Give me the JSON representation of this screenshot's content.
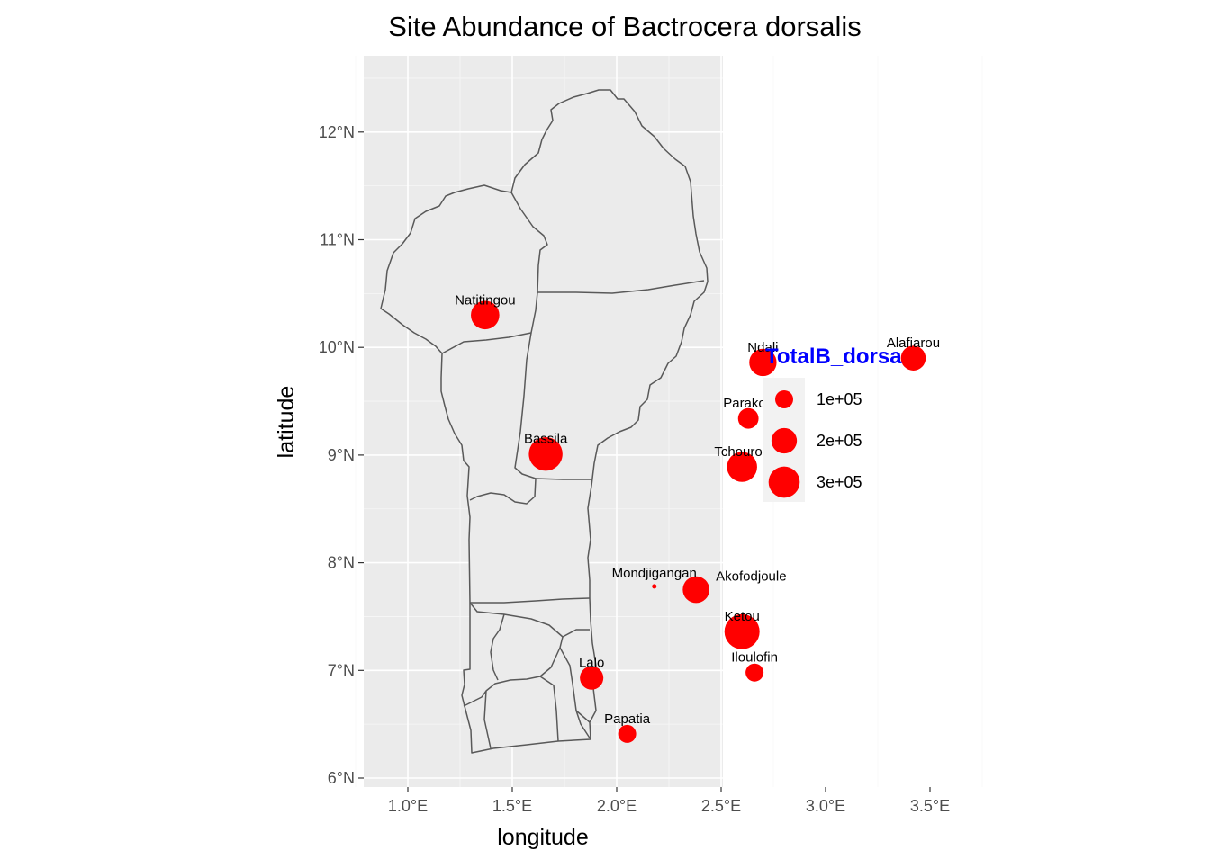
{
  "title": "Site Abundance of Bactrocera dorsalis",
  "x_axis_label": "longitude",
  "y_axis_label": "latitude",
  "x_ticks": [
    {
      "value": 1.0,
      "label": "1.0°E"
    },
    {
      "value": 1.5,
      "label": "1.5°E"
    },
    {
      "value": 2.0,
      "label": "2.0°E"
    },
    {
      "value": 2.5,
      "label": "2.5°E"
    },
    {
      "value": 3.0,
      "label": "3.0°E"
    },
    {
      "value": 3.5,
      "label": "3.5°E"
    }
  ],
  "y_ticks": [
    {
      "value": 6,
      "label": "6°N"
    },
    {
      "value": 7,
      "label": "7°N"
    },
    {
      "value": 8,
      "label": "8°N"
    },
    {
      "value": 9,
      "label": "9°N"
    },
    {
      "value": 10,
      "label": "10°N"
    },
    {
      "value": 11,
      "label": "11°N"
    },
    {
      "value": 12,
      "label": "12°N"
    }
  ],
  "xlim": [
    0.57,
    3.87
  ],
  "ylim": [
    5.93,
    12.66
  ],
  "legend": {
    "title": "TotalB_dorsa",
    "title_color": "#0000ff",
    "entries": [
      {
        "value": 100000,
        "label": "1e+05"
      },
      {
        "value": 200000,
        "label": "2e+05"
      },
      {
        "value": 300000,
        "label": "3e+05"
      }
    ]
  },
  "colors": {
    "point": "#ff0000",
    "panel_bg": "#ebebeb",
    "grid": "#ffffff",
    "border": "#595959"
  },
  "chart_data": {
    "type": "scatter",
    "x": "longitude",
    "y": "latitude",
    "size": "TotalB_dorsa",
    "points": [
      {
        "name": "Natitingou",
        "lon": 1.37,
        "lat": 10.3,
        "value": 250000
      },
      {
        "name": "Ndali",
        "lon": 2.7,
        "lat": 9.86,
        "value": 230000
      },
      {
        "name": "Alafiarou",
        "lon": 3.42,
        "lat": 9.9,
        "value": 190000
      },
      {
        "name": "Parakou",
        "lon": 2.63,
        "lat": 9.34,
        "value": 130000
      },
      {
        "name": "Bassila",
        "lon": 1.66,
        "lat": 9.01,
        "value": 350000
      },
      {
        "name": "Tchourou",
        "lon": 2.6,
        "lat": 8.89,
        "value": 280000
      },
      {
        "name": "Mondjigangan",
        "lon": 2.18,
        "lat": 7.78,
        "value": 5000
      },
      {
        "name": "Akofodjoule",
        "lon": 2.38,
        "lat": 7.75,
        "value": 220000
      },
      {
        "name": "Ketou",
        "lon": 2.6,
        "lat": 7.36,
        "value": 380000
      },
      {
        "name": "Lalo",
        "lon": 1.88,
        "lat": 6.93,
        "value": 170000
      },
      {
        "name": "Iloulofin",
        "lon": 2.66,
        "lat": 6.98,
        "value": 100000
      },
      {
        "name": "Papatia",
        "lon": 2.05,
        "lat": 6.41,
        "value": 100000
      }
    ]
  }
}
